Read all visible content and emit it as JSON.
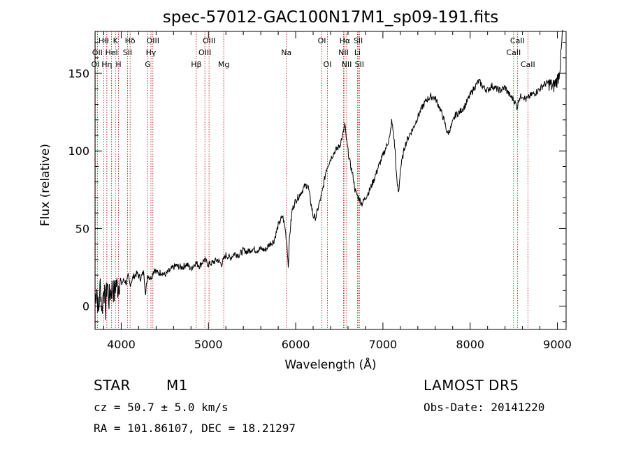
{
  "chart_data": {
    "type": "line",
    "title": "spec-57012-GAC100N17M1_sp09-191.fits",
    "xlabel": "Wavelength (Å)",
    "ylabel": "Flux (relative)",
    "xlim": [
      3700,
      9100
    ],
    "ylim": [
      -15,
      177
    ],
    "xticks": [
      4000,
      5000,
      6000,
      7000,
      8000,
      9000
    ],
    "yticks": [
      0,
      50,
      100,
      150
    ],
    "grid": false,
    "line_color": "#000000",
    "marker_color": "#c00000",
    "series": [
      {
        "values": [
          [
            3700,
            5
          ],
          [
            3720,
            12
          ],
          [
            3740,
            -5
          ],
          [
            3760,
            15
          ],
          [
            3780,
            -3
          ],
          [
            3800,
            14
          ],
          [
            3820,
            -2
          ],
          [
            3840,
            16
          ],
          [
            3860,
            4
          ],
          [
            3880,
            10
          ],
          [
            3900,
            12
          ],
          [
            3920,
            8
          ],
          [
            3940,
            15
          ],
          [
            3960,
            12
          ],
          [
            3980,
            16
          ],
          [
            4000,
            14
          ],
          [
            4030,
            17
          ],
          [
            4060,
            15
          ],
          [
            4080,
            19
          ],
          [
            4100,
            14
          ],
          [
            4140,
            19
          ],
          [
            4180,
            21
          ],
          [
            4220,
            18
          ],
          [
            4260,
            22
          ],
          [
            4280,
            7
          ],
          [
            4300,
            20
          ],
          [
            4340,
            18
          ],
          [
            4380,
            24
          ],
          [
            4420,
            21
          ],
          [
            4460,
            22
          ],
          [
            4500,
            20
          ],
          [
            4560,
            23
          ],
          [
            4620,
            26
          ],
          [
            4700,
            25
          ],
          [
            4750,
            27
          ],
          [
            4800,
            24
          ],
          [
            4850,
            28
          ],
          [
            4900,
            26
          ],
          [
            4950,
            30
          ],
          [
            5000,
            27
          ],
          [
            5050,
            28
          ],
          [
            5100,
            30
          ],
          [
            5150,
            27
          ],
          [
            5200,
            33
          ],
          [
            5250,
            31
          ],
          [
            5300,
            34
          ],
          [
            5350,
            33
          ],
          [
            5400,
            36
          ],
          [
            5450,
            35
          ],
          [
            5500,
            37
          ],
          [
            5550,
            36
          ],
          [
            5600,
            37
          ],
          [
            5650,
            36
          ],
          [
            5700,
            40
          ],
          [
            5750,
            42
          ],
          [
            5800,
            52
          ],
          [
            5850,
            58
          ],
          [
            5880,
            50
          ],
          [
            5900,
            40
          ],
          [
            5915,
            26
          ],
          [
            5930,
            45
          ],
          [
            5960,
            62
          ],
          [
            6000,
            68
          ],
          [
            6050,
            72
          ],
          [
            6100,
            77
          ],
          [
            6140,
            78
          ],
          [
            6170,
            68
          ],
          [
            6200,
            58
          ],
          [
            6230,
            57
          ],
          [
            6260,
            64
          ],
          [
            6300,
            72
          ],
          [
            6350,
            88
          ],
          [
            6400,
            95
          ],
          [
            6450,
            100
          ],
          [
            6500,
            103
          ],
          [
            6540,
            110
          ],
          [
            6563,
            117
          ],
          [
            6580,
            108
          ],
          [
            6600,
            100
          ],
          [
            6620,
            93
          ],
          [
            6640,
            88
          ],
          [
            6660,
            83
          ],
          [
            6680,
            75
          ],
          [
            6700,
            72
          ],
          [
            6730,
            69
          ],
          [
            6760,
            66
          ],
          [
            6800,
            70
          ],
          [
            6850,
            75
          ],
          [
            6900,
            82
          ],
          [
            6950,
            90
          ],
          [
            7000,
            97
          ],
          [
            7040,
            103
          ],
          [
            7080,
            109
          ],
          [
            7100,
            119
          ],
          [
            7120,
            112
          ],
          [
            7140,
            100
          ],
          [
            7160,
            80
          ],
          [
            7180,
            73
          ],
          [
            7200,
            88
          ],
          [
            7250,
            103
          ],
          [
            7300,
            110
          ],
          [
            7350,
            115
          ],
          [
            7400,
            122
          ],
          [
            7450,
            128
          ],
          [
            7500,
            133
          ],
          [
            7550,
            135
          ],
          [
            7600,
            134
          ],
          [
            7650,
            128
          ],
          [
            7700,
            120
          ],
          [
            7740,
            111
          ],
          [
            7780,
            115
          ],
          [
            7830,
            123
          ],
          [
            7880,
            125
          ],
          [
            7940,
            129
          ],
          [
            8000,
            136
          ],
          [
            8050,
            141
          ],
          [
            8100,
            145
          ],
          [
            8150,
            141
          ],
          [
            8200,
            139
          ],
          [
            8250,
            142
          ],
          [
            8300,
            140
          ],
          [
            8350,
            139
          ],
          [
            8400,
            141
          ],
          [
            8450,
            136
          ],
          [
            8500,
            133
          ],
          [
            8540,
            128
          ],
          [
            8560,
            134
          ],
          [
            8600,
            136
          ],
          [
            8640,
            133
          ],
          [
            8700,
            136
          ],
          [
            8760,
            138
          ],
          [
            8800,
            140
          ],
          [
            8850,
            143
          ],
          [
            8900,
            144
          ],
          [
            8950,
            141
          ],
          [
            9000,
            146
          ],
          [
            9020,
            150
          ],
          [
            9040,
            160
          ],
          [
            9060,
            178
          ]
        ]
      }
    ],
    "lines": [
      {
        "label": "Hθ",
        "x": 3798,
        "row": 0
      },
      {
        "label": "OII",
        "x": 3727,
        "row": 1
      },
      {
        "label": "OI",
        "x": 3704,
        "row": 2
      },
      {
        "label": "Hη",
        "x": 3835,
        "row": 2
      },
      {
        "label": "K",
        "x": 3934,
        "row": 0
      },
      {
        "label": "HeI",
        "x": 3889,
        "row": 1
      },
      {
        "label": "H",
        "x": 3969,
        "row": 2
      },
      {
        "label": "Hδ",
        "x": 4102,
        "row": 0
      },
      {
        "label": "SII",
        "x": 4072,
        "row": 1
      },
      {
        "label": "OIII",
        "x": 4363,
        "row": 0
      },
      {
        "label": "Hγ",
        "x": 4341,
        "row": 1
      },
      {
        "label": "G",
        "x": 4305,
        "row": 2
      },
      {
        "label": "OIII",
        "x": 5007,
        "row": 0
      },
      {
        "label": "OIII",
        "x": 4959,
        "row": 1
      },
      {
        "label": "Hβ",
        "x": 4861,
        "row": 2
      },
      {
        "label": "Mg",
        "x": 5175,
        "row": 2
      },
      {
        "label": "Na",
        "x": 5893,
        "row": 1
      },
      {
        "label": "OI",
        "x": 6300,
        "row": 0
      },
      {
        "label": "OI",
        "x": 6364,
        "row": 2
      },
      {
        "label": "Hα",
        "x": 6563,
        "row": 0
      },
      {
        "label": "NII",
        "x": 6548,
        "row": 1
      },
      {
        "label": "NII",
        "x": 6584,
        "row": 2
      },
      {
        "label": "SII",
        "x": 6717,
        "row": 0
      },
      {
        "label": "Li",
        "x": 6708,
        "row": 1
      },
      {
        "label": "SII",
        "x": 6731,
        "row": 2
      },
      {
        "label": "CaII",
        "x": 8542,
        "row": 0
      },
      {
        "label": "CaII",
        "x": 8498,
        "row": 1
      },
      {
        "label": "CaII",
        "x": 8662,
        "row": 2
      }
    ]
  },
  "info": {
    "class": "STAR",
    "subclass": "M1",
    "survey": "LAMOST DR5",
    "cz": "cz = 50.7 ± 5.0 km/s",
    "obs_date": "Obs-Date: 20141220",
    "coords": "RA = 101.86107, DEC =  18.21297"
  }
}
